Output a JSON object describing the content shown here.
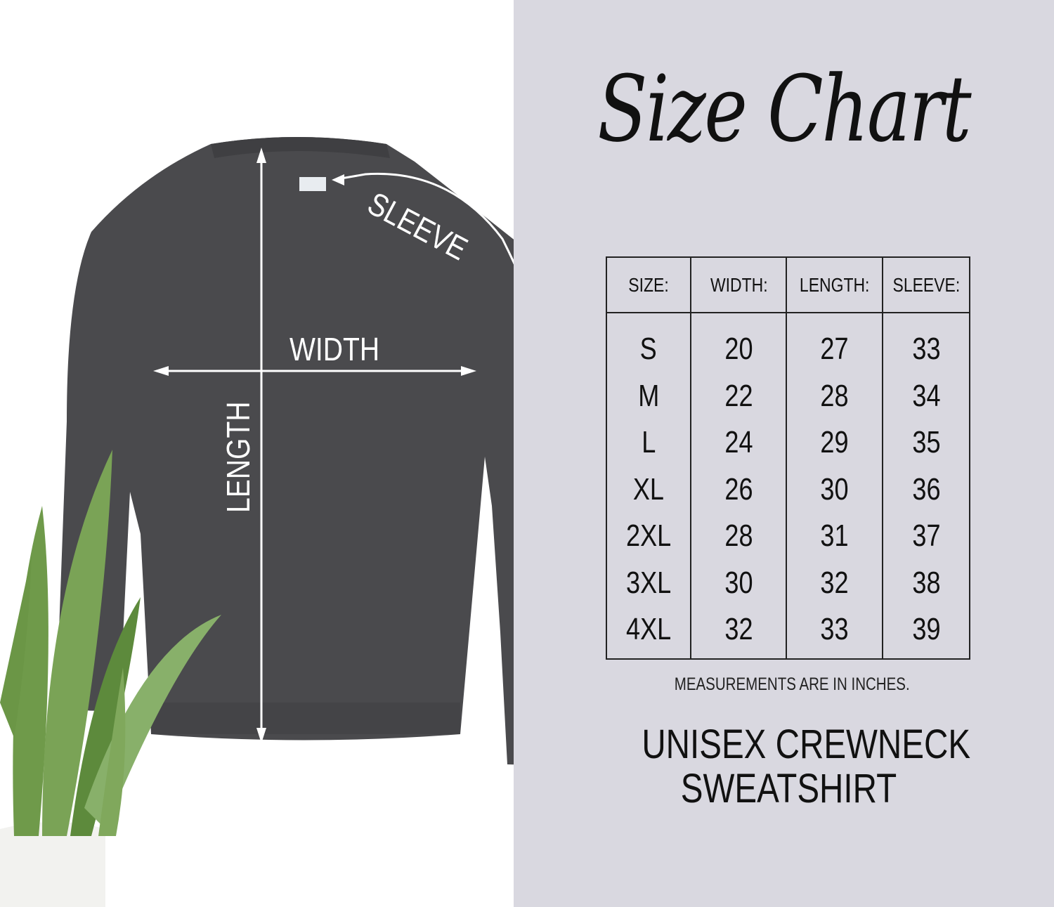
{
  "title": "Size Chart",
  "garment_labels": {
    "sleeve": "SLEEVE",
    "width": "WIDTH",
    "length": "LENGTH"
  },
  "colors": {
    "garment": "#4a4a4d",
    "panel": "#d9d8e0",
    "plant": "#6f9a4a"
  },
  "table": {
    "headers": [
      "SIZE:",
      "WIDTH:",
      "LENGTH:",
      "SLEEVE:"
    ],
    "rows": [
      [
        "S",
        "20",
        "27",
        "33"
      ],
      [
        "M",
        "22",
        "28",
        "34"
      ],
      [
        "L",
        "24",
        "29",
        "35"
      ],
      [
        "XL",
        "26",
        "30",
        "36"
      ],
      [
        "2XL",
        "28",
        "31",
        "37"
      ],
      [
        "3XL",
        "30",
        "32",
        "38"
      ],
      [
        "4XL",
        "32",
        "33",
        "39"
      ]
    ]
  },
  "note": "MEASUREMENTS ARE IN INCHES.",
  "product": {
    "line1": "UNISEX CREWNECK",
    "line2": "SWEATSHIRT"
  }
}
